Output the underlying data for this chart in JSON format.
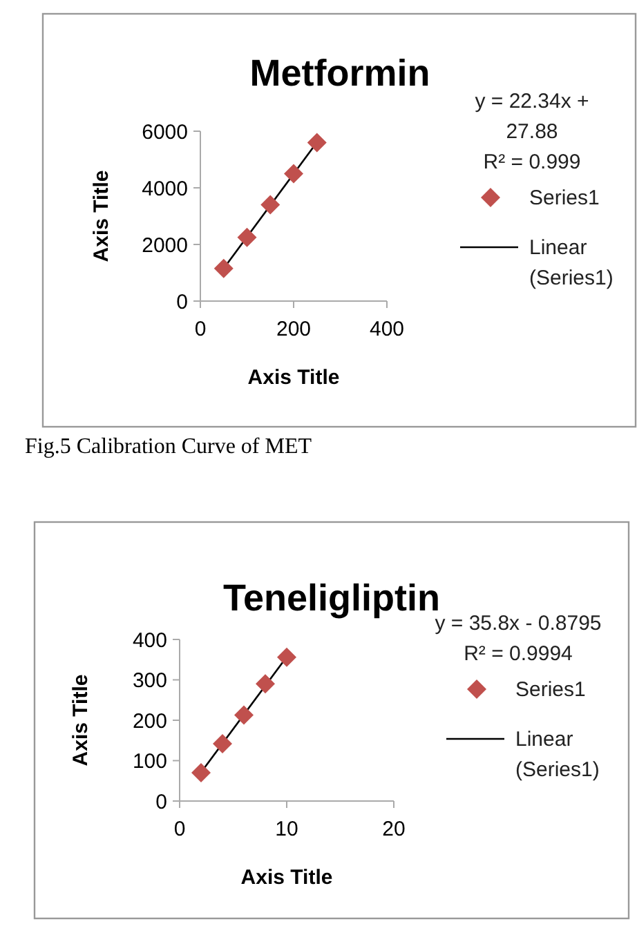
{
  "chart_data": [
    {
      "type": "scatter",
      "title": "Metformin",
      "xlabel": "Axis Title",
      "ylabel": "Axis Title",
      "x": [
        50,
        100,
        150,
        200,
        250
      ],
      "series": [
        {
          "name": "Series1",
          "color": "#c0504d",
          "marker": "diamond",
          "values": [
            1150,
            2250,
            3400,
            4500,
            5600
          ]
        },
        {
          "name": "Linear (Series1)",
          "type": "line",
          "color": "#000000",
          "x": [
            50,
            250
          ],
          "values": [
            1150,
            5610
          ],
          "line_style": "solid"
        }
      ],
      "xlim": [
        0,
        400
      ],
      "xticks": [
        0,
        200,
        400
      ],
      "ylim": [
        0,
        6000
      ],
      "yticks": [
        0,
        2000,
        4000,
        6000
      ],
      "grid": false,
      "legend": "right",
      "annotations": [
        "y = 22.34x + 27.88",
        "R² = 0.999",
        "Fig.5 Calibration Curve of MET"
      ]
    },
    {
      "type": "scatter",
      "title": "Teneligliptin",
      "xlabel": "Axis Title",
      "ylabel": "Axis Title",
      "x": [
        2,
        4,
        6,
        8,
        10
      ],
      "series": [
        {
          "name": "Series1",
          "color": "#c0504d",
          "marker": "diamond",
          "values": [
            70,
            142,
            213,
            290,
            356
          ]
        },
        {
          "name": "Linear (Series1)",
          "type": "line",
          "color": "#000000",
          "x": [
            2,
            10
          ],
          "values": [
            71,
            357
          ],
          "line_style": "solid"
        }
      ],
      "xlim": [
        0,
        20
      ],
      "xticks": [
        0,
        10,
        20
      ],
      "ylim": [
        0,
        400
      ],
      "yticks": [
        0,
        100,
        200,
        300,
        400
      ],
      "grid": false,
      "legend": "right",
      "annotations": [
        "y = 35.8x - 0.8795",
        "R² = 0.9994"
      ]
    }
  ]
}
